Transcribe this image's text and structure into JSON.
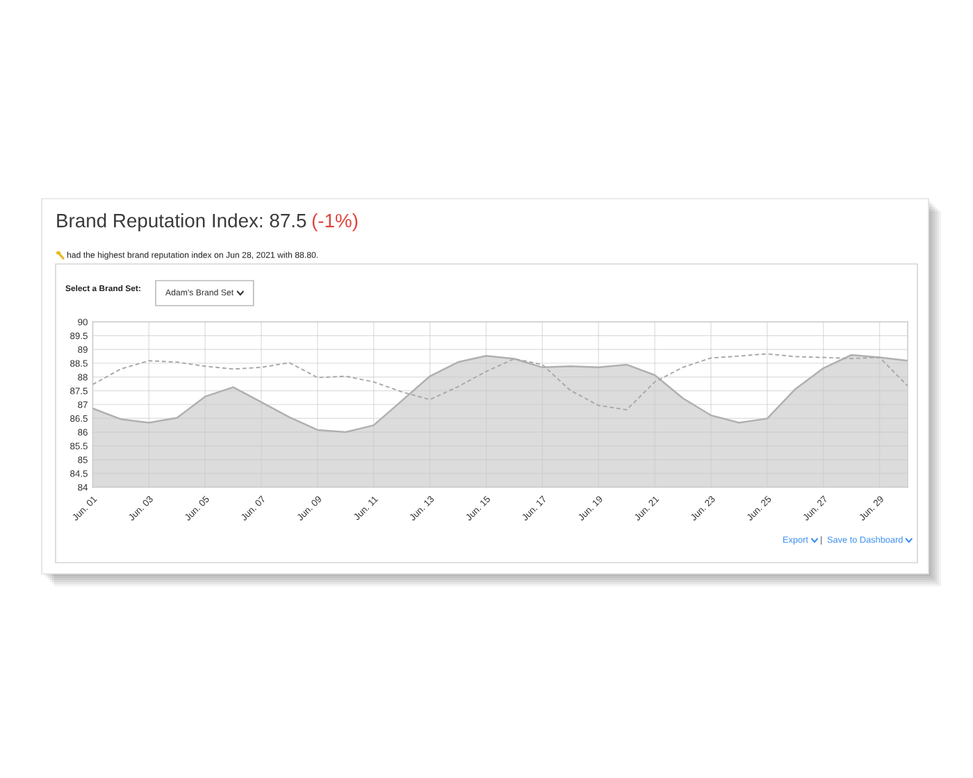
{
  "chart_data": {
    "type": "area",
    "title": "Brand Reputation Index: 87.5",
    "subtitle": "(-1%)",
    "annotations": [
      "had the highest brand reputation index on Jun 28, 2021 with 88.80.",
      "Select a Brand Set:",
      "Adam's Brand Set",
      "Export",
      "|",
      "Save to Dashboard"
    ],
    "categories": [
      "Jun. 01",
      null,
      "Jun. 03",
      null,
      "Jun. 05",
      null,
      "Jun. 07",
      null,
      "Jun. 09",
      null,
      "Jun. 11",
      null,
      "Jun. 13",
      null,
      "Jun. 15",
      null,
      "Jun. 17",
      null,
      "Jun. 19",
      null,
      "Jun. 21",
      null,
      "Jun. 23",
      null,
      "Jun. 25",
      null,
      "Jun. 27",
      null,
      "Jun. 29",
      null
    ],
    "series": [
      {
        "color": "#dcdcdc",
        "values": [
          86.86,
          86.47,
          86.34,
          86.52,
          87.29,
          87.63,
          87.09,
          86.54,
          86.08,
          86.0,
          86.25,
          87.14,
          88.03,
          88.54,
          88.77,
          88.66,
          88.35,
          88.39,
          88.35,
          88.45,
          88.07,
          87.23,
          86.61,
          86.34,
          86.49,
          87.56,
          88.32,
          88.8,
          88.71,
          88.59
        ]
      },
      {
        "type": "line",
        "line_style": "dashed",
        "color": "#a8a8a8",
        "values": [
          87.73,
          88.29,
          88.59,
          88.54,
          88.39,
          88.29,
          88.35,
          88.52,
          87.98,
          88.03,
          87.82,
          87.46,
          87.18,
          87.65,
          88.2,
          88.66,
          88.45,
          87.51,
          86.97,
          86.81,
          87.82,
          88.35,
          88.69,
          88.76,
          88.84,
          88.74,
          88.71,
          88.67,
          88.71,
          87.68
        ]
      }
    ],
    "ylim": [
      84,
      90
    ],
    "yticks": [
      84,
      84.5,
      85,
      85.5,
      86,
      86.5,
      87,
      87.5,
      88,
      88.5,
      89,
      89.5,
      90
    ],
    "grid": true
  }
}
